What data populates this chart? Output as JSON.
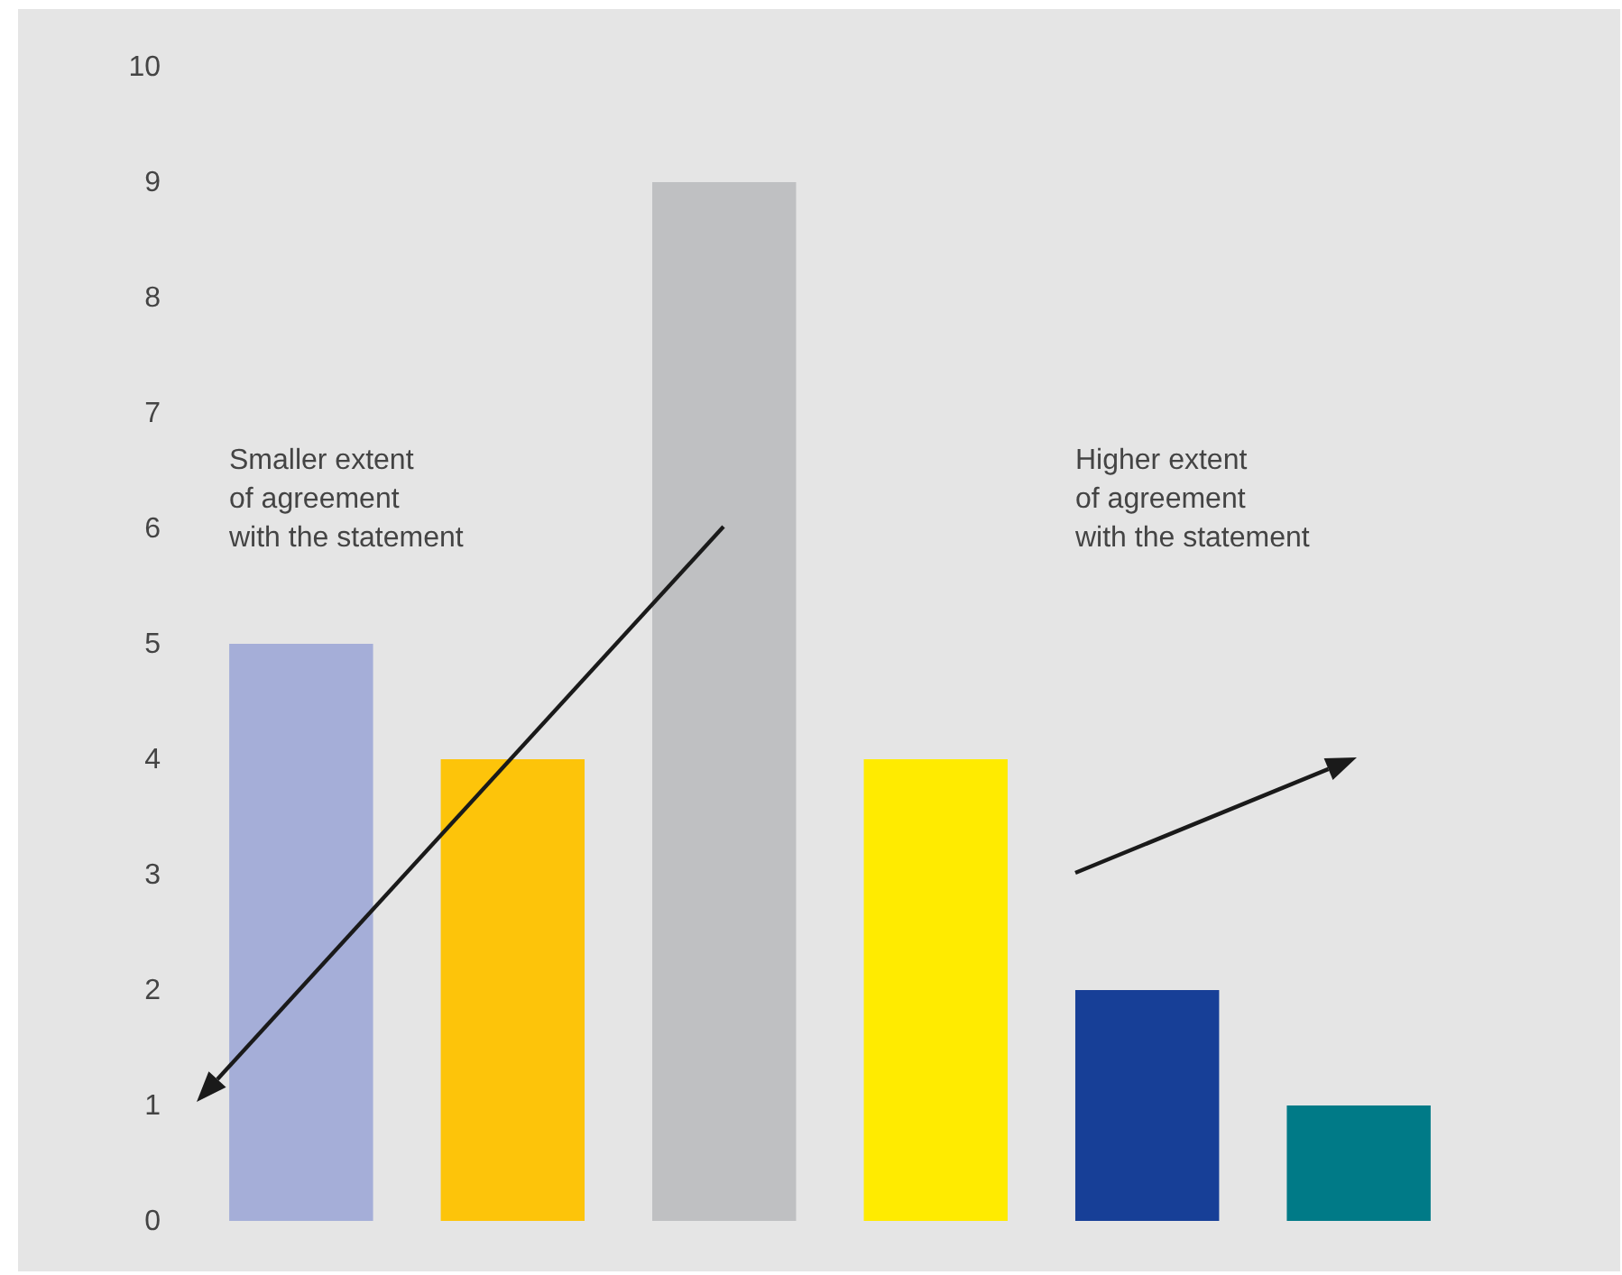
{
  "chart_data": {
    "type": "bar",
    "categories": [
      null,
      null,
      null,
      null,
      null,
      null
    ],
    "values": [
      5,
      4,
      9,
      4,
      2,
      1
    ],
    "colors": [
      "#a5aed8",
      "#fdc40a",
      "#bfc0c2",
      "#ffeb00",
      "#173f97",
      "#007a87"
    ],
    "ylim": [
      0,
      10
    ],
    "yticks": [
      0,
      1,
      2,
      3,
      4,
      5,
      6,
      7,
      8,
      9,
      10
    ],
    "grid": false,
    "annotations": [
      "Smaller extent\nof agreement\nwith the statement",
      "Higher extent\nof agreement\nwith the statement"
    ]
  }
}
